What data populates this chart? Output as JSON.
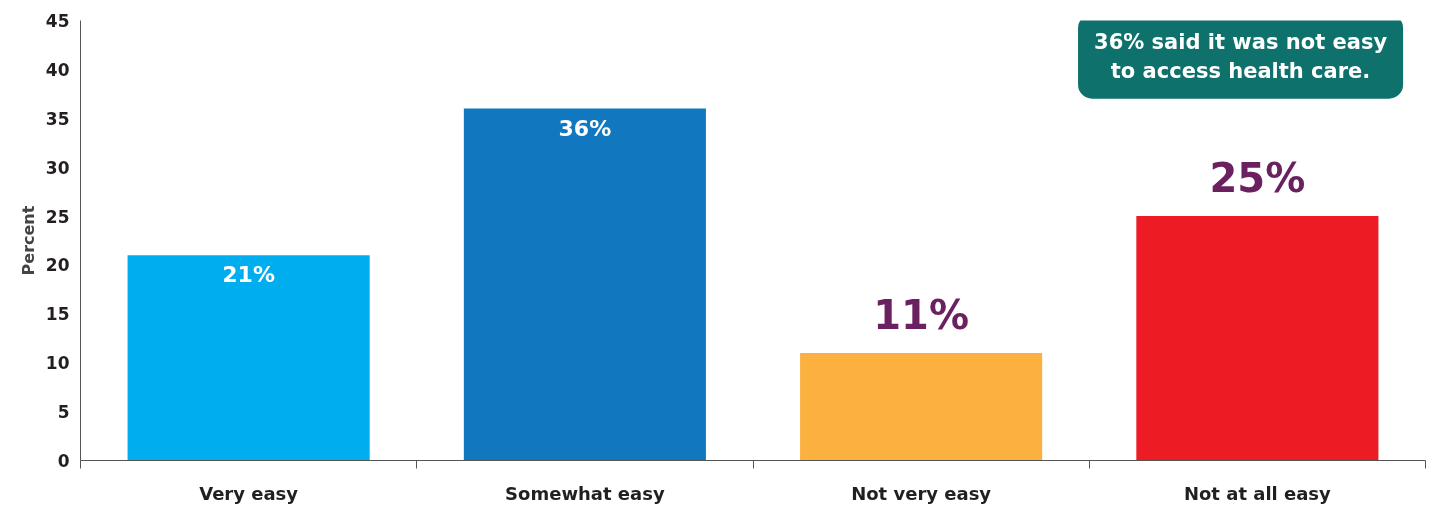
{
  "chart_data": {
    "type": "bar",
    "ylabel": "Percent",
    "categories": [
      "Very easy",
      "Somewhat easy",
      "Not very easy",
      "Not at all easy"
    ],
    "values": [
      21,
      36,
      11,
      25
    ],
    "colors": [
      "#00aeef",
      "#1177bf",
      "#fbb040",
      "#ed1c24"
    ],
    "value_labels": [
      "21%",
      "36%",
      "11%",
      "25%"
    ],
    "ylim": [
      0,
      45
    ],
    "yticks": [
      0,
      5,
      10,
      15,
      20,
      25,
      30,
      35,
      40,
      45
    ],
    "grid": false,
    "annotations": [
      "36% said it was not easy to access health care."
    ]
  }
}
